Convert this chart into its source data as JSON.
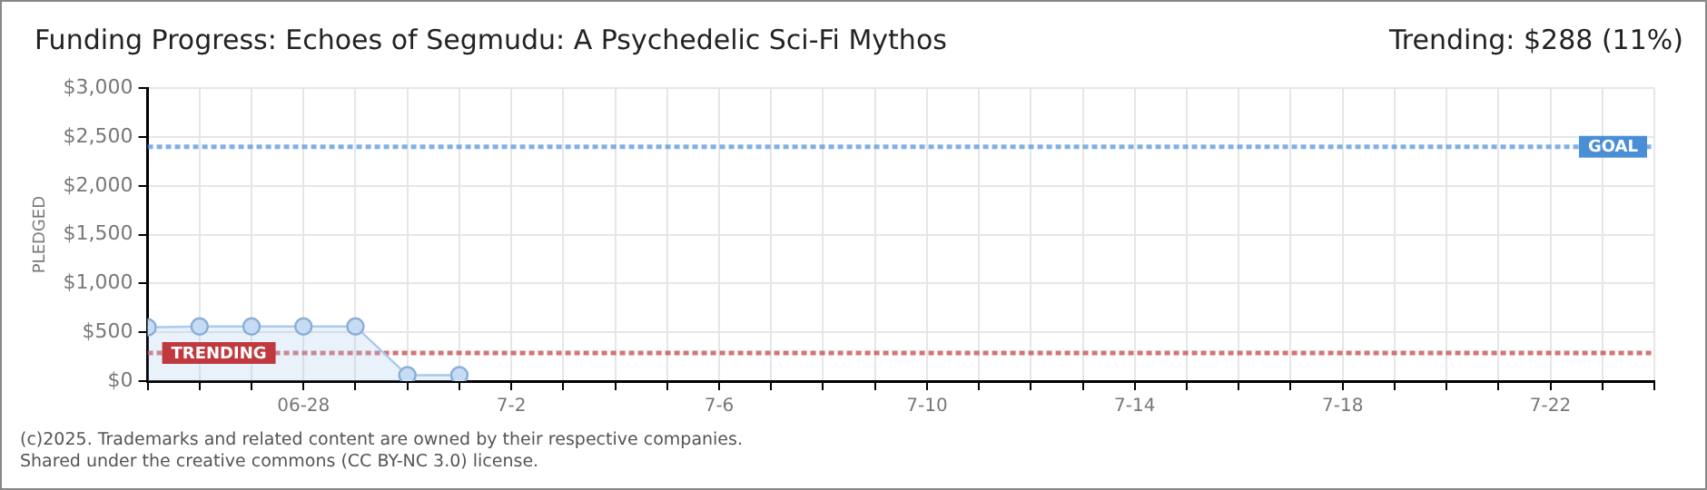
{
  "chart_data": {
    "type": "area",
    "title": "Funding Progress: Echoes of Segmudu: A Psychedelic Sci-Fi Mythos",
    "ylabel": "PLEDGED",
    "annotations": [
      "Trending: $288 (11%)",
      "(c)2025. Trademarks and related content are owned by their respective companies.",
      "Shared under the creative commons (CC BY-NC 3.0) license."
    ],
    "x": [
      "--06-25",
      "--06-26",
      "--06-27",
      "--06-28",
      "--06-29",
      "--06-30",
      "--07-01"
    ],
    "series": [
      {
        "color": "#a9c9ee",
        "values": [
          550,
          560,
          560,
          560,
          560,
          60,
          60
        ]
      }
    ],
    "xlim": [
      "--06-25",
      "--07-24"
    ],
    "xticks": [
      {
        "value": "--06-25",
        "label": null
      },
      {
        "value": "--06-26",
        "label": null
      },
      {
        "value": "--06-27",
        "label": null
      },
      {
        "value": "--06-28",
        "label": "06-28"
      },
      {
        "value": "--06-29",
        "label": null
      },
      {
        "value": "--06-30",
        "label": null
      },
      {
        "value": "--07-01",
        "label": null
      },
      {
        "value": "--07-02",
        "label": "7-2"
      },
      {
        "value": "--07-03",
        "label": null
      },
      {
        "value": "--07-04",
        "label": null
      },
      {
        "value": "--07-05",
        "label": null
      },
      {
        "value": "--07-06",
        "label": "7-6"
      },
      {
        "value": "--07-07",
        "label": null
      },
      {
        "value": "--07-08",
        "label": null
      },
      {
        "value": "--07-09",
        "label": null
      },
      {
        "value": "--07-10",
        "label": "7-10"
      },
      {
        "value": "--07-11",
        "label": null
      },
      {
        "value": "--07-12",
        "label": null
      },
      {
        "value": "--07-13",
        "label": null
      },
      {
        "value": "--07-14",
        "label": "7-14"
      },
      {
        "value": "--07-15",
        "label": null
      },
      {
        "value": "--07-16",
        "label": null
      },
      {
        "value": "--07-17",
        "label": null
      },
      {
        "value": "--07-18",
        "label": "7-18"
      },
      {
        "value": "--07-19",
        "label": null
      },
      {
        "value": "--07-20",
        "label": null
      },
      {
        "value": "--07-21",
        "label": null
      },
      {
        "value": "--07-22",
        "label": "7-22"
      },
      {
        "value": "--07-23",
        "label": null
      },
      {
        "value": "--07-24",
        "label": null
      }
    ],
    "ylim": [
      0,
      3000
    ],
    "yticks": [
      {
        "value": 0,
        "label": "$0"
      },
      {
        "value": 500,
        "label": "$500"
      },
      {
        "value": 1000,
        "label": "$1,000"
      },
      {
        "value": 1500,
        "label": "$1,500"
      },
      {
        "value": 2000,
        "label": "$2,000"
      },
      {
        "value": 2500,
        "label": "$2,500"
      },
      {
        "value": 3000,
        "label": "$3,000"
      }
    ],
    "ref_lines": [
      {
        "axis": "y",
        "value": 2400,
        "label": "GOAL",
        "color": "#4a8fd6",
        "line_style": "dashed"
      },
      {
        "axis": "y",
        "value": 288,
        "label": "TRENDING",
        "color": "#c0393f",
        "line_style": "dashed"
      }
    ],
    "grid": true,
    "legend": false,
    "marker": "circle"
  }
}
